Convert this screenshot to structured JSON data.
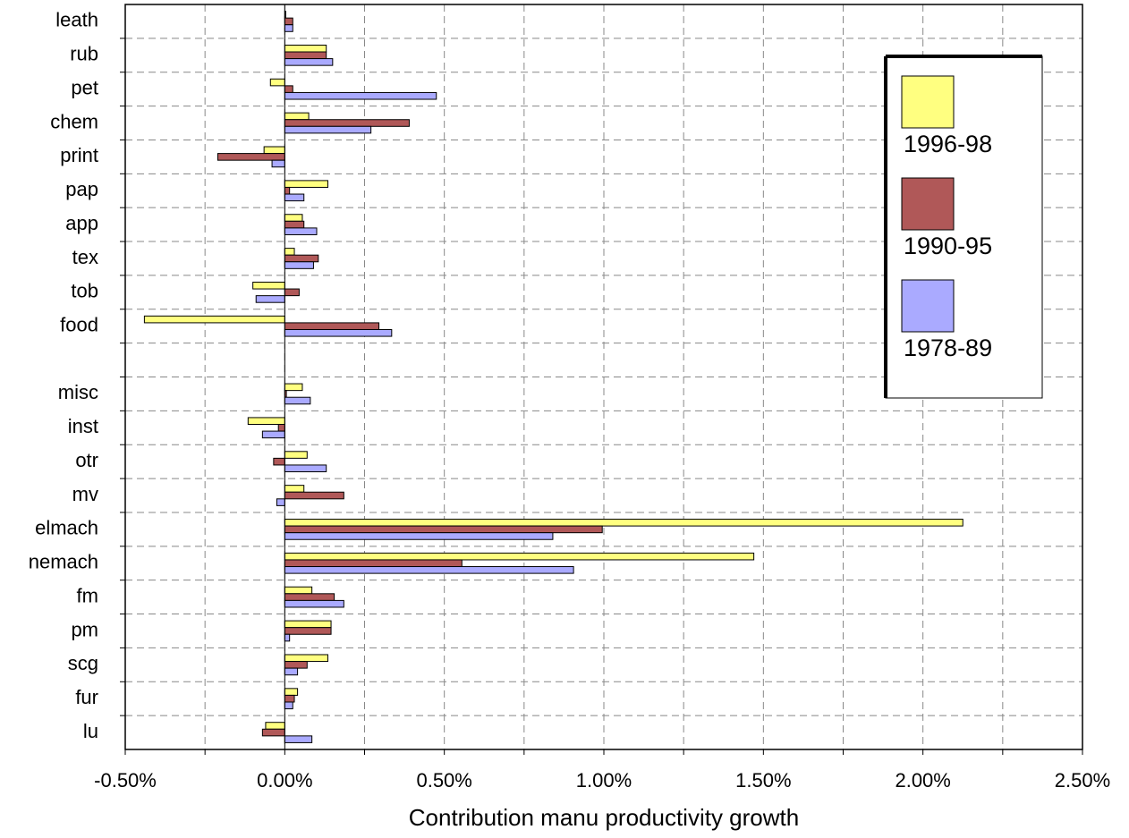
{
  "chart_data": {
    "type": "bar",
    "orientation": "horizontal",
    "x_label": "Contribution manu productivity growth",
    "categories": [
      "leath",
      "rub",
      "pet",
      "chem",
      "print",
      "pap",
      "app",
      "tex",
      "tob",
      "food",
      null,
      "misc",
      "inst",
      "otr",
      "mv",
      "elmach",
      "nemach",
      "fm",
      "pm",
      "scg",
      "fur",
      "lu"
    ],
    "series": [
      {
        "name": "1996-98",
        "color": "#ffff80",
        "values": [
          0.0,
          0.13,
          -0.045,
          0.075,
          -0.065,
          0.135,
          0.055,
          0.03,
          -0.1,
          -0.44,
          null,
          0.055,
          -0.115,
          0.07,
          0.06,
          2.125,
          1.47,
          0.085,
          0.145,
          0.135,
          0.04,
          -0.06
        ]
      },
      {
        "name": "1990-95",
        "color": "#b05858",
        "values": [
          0.025,
          0.13,
          0.025,
          0.39,
          -0.21,
          0.015,
          0.06,
          0.105,
          0.045,
          0.295,
          null,
          0.005,
          -0.02,
          -0.035,
          0.185,
          0.995,
          0.555,
          0.155,
          0.145,
          0.07,
          0.03,
          -0.07
        ]
      },
      {
        "name": "1978-89",
        "color": "#aaaaff",
        "values": [
          0.025,
          0.15,
          0.475,
          0.27,
          -0.04,
          0.06,
          0.1,
          0.09,
          -0.09,
          0.335,
          null,
          0.08,
          -0.07,
          0.13,
          -0.025,
          0.84,
          0.905,
          0.185,
          0.015,
          0.04,
          0.025,
          0.085
        ]
      }
    ],
    "xlim": [
      -0.5,
      2.5
    ],
    "xticks": [
      {
        "value": -0.5,
        "label": "-0.50%"
      },
      {
        "value": 0,
        "label": "0.00%"
      },
      {
        "value": 0.5,
        "label": "0.50%"
      },
      {
        "value": 1,
        "label": "1.00%"
      },
      {
        "value": 1.5,
        "label": "1.50%"
      },
      {
        "value": 2,
        "label": "2.00%"
      },
      {
        "value": 2.5,
        "label": "2.50%"
      }
    ],
    "xminorticks": [
      -0.25,
      0.25,
      0.75,
      1.25,
      1.75,
      2.25
    ],
    "grid": true,
    "legend": "upper right"
  }
}
